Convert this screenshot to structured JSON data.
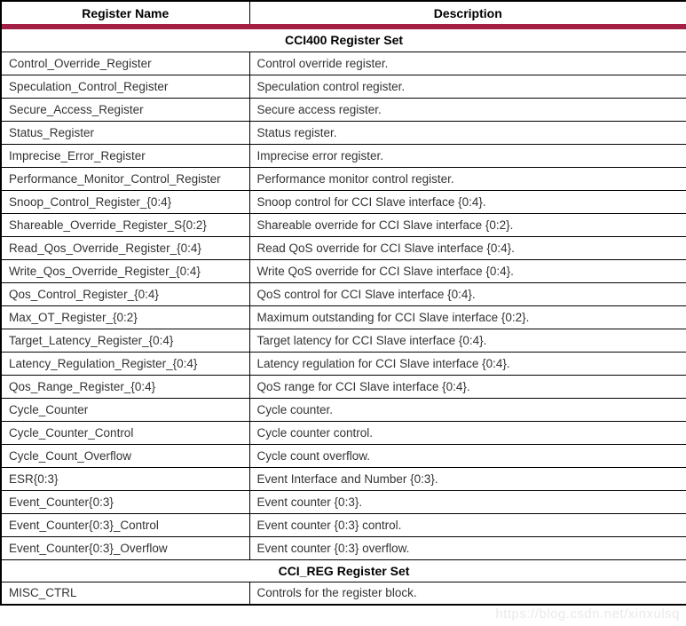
{
  "colors": {
    "accent_line": "#A32044",
    "border": "#000000",
    "header_text": "#000000",
    "body_text": "#333333",
    "watermark_text": "#EAEAEA"
  },
  "watermark": "https://blog.csdn.net/xinxulsq",
  "table": {
    "columns": [
      {
        "label": "Register Name"
      },
      {
        "label": "Description"
      }
    ],
    "sections": [
      {
        "title": "CCI400 Register Set",
        "rows": [
          {
            "register": "Control_Override_Register",
            "description": "Control override register."
          },
          {
            "register": "Speculation_Control_Register",
            "description": "Speculation control register."
          },
          {
            "register": "Secure_Access_Register",
            "description": "Secure access register."
          },
          {
            "register": "Status_Register",
            "description": "Status register."
          },
          {
            "register": "Imprecise_Error_Register",
            "description": "Imprecise error register."
          },
          {
            "register": "Performance_Monitor_Control_Register",
            "description": "Performance monitor control register."
          },
          {
            "register": "Snoop_Control_Register_{0:4}",
            "description": "Snoop control for CCI Slave interface {0:4}."
          },
          {
            "register": "Shareable_Override_Register_S{0:2}",
            "description": "Shareable override for CCI Slave interface {0:2}."
          },
          {
            "register": "Read_Qos_Override_Register_{0:4}",
            "description": "Read QoS override for CCI Slave interface {0:4}."
          },
          {
            "register": "Write_Qos_Override_Register_{0:4}",
            "description": "Write QoS override for CCI Slave interface {0:4}."
          },
          {
            "register": "Qos_Control_Register_{0:4}",
            "description": "QoS control for CCI Slave interface {0:4}."
          },
          {
            "register": "Max_OT_Register_{0:2}",
            "description": "Maximum outstanding for CCI Slave interface {0:2}."
          },
          {
            "register": "Target_Latency_Register_{0:4}",
            "description": "Target latency for CCI Slave interface {0:4}."
          },
          {
            "register": "Latency_Regulation_Register_{0:4}",
            "description": "Latency regulation for CCI Slave interface {0:4}."
          },
          {
            "register": "Qos_Range_Register_{0:4}",
            "description": "QoS range for CCI Slave interface {0:4}."
          },
          {
            "register": "Cycle_Counter",
            "description": "Cycle counter."
          },
          {
            "register": "Cycle_Counter_Control",
            "description": "Cycle counter control."
          },
          {
            "register": "Cycle_Count_Overflow",
            "description": "Cycle count overflow."
          },
          {
            "register": "ESR{0:3}",
            "description": "Event Interface and Number {0:3}."
          },
          {
            "register": "Event_Counter{0:3}",
            "description": "Event counter {0:3}."
          },
          {
            "register": "Event_Counter{0:3}_Control",
            "description": "Event counter {0:3} control."
          },
          {
            "register": "Event_Counter{0:3}_Overflow",
            "description": "Event counter {0:3} overflow."
          }
        ]
      },
      {
        "title": "CCI_REG Register Set",
        "rows": [
          {
            "register": "MISC_CTRL",
            "description": "Controls for the register block."
          }
        ]
      }
    ]
  }
}
